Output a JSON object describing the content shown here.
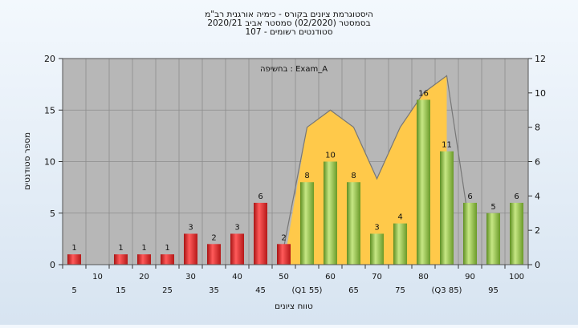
{
  "chart_data": {
    "type": "bar",
    "title_lines": [
      "היסטוגרמת ציונים בקורס - כימיה אורגנית רב\"מ",
      "בסמסטר  (02/2020)  סמסטר אביב 2020/21",
      "סטודנטים רשומים - 107"
    ],
    "annotation": "בחשיפה : Exam_A",
    "xlabel": "טווח ציונים",
    "ylabel": "מספר סטודנטים",
    "ylim": [
      0,
      20
    ],
    "y_ticks": [
      0,
      5,
      10,
      15,
      20
    ],
    "y2lim": [
      0,
      12
    ],
    "y2_ticks": [
      0,
      2,
      4,
      6,
      8,
      10,
      12
    ],
    "grid": true,
    "categories": [
      "5",
      "10",
      "15",
      "20",
      "25",
      "30",
      "35",
      "40",
      "45",
      "50",
      "(Q1 55)",
      "60",
      "65",
      "70",
      "75",
      "80",
      "(Q3 85)",
      "90",
      "95",
      "100"
    ],
    "values": [
      1,
      0,
      1,
      1,
      1,
      3,
      2,
      3,
      6,
      2,
      8,
      10,
      8,
      3,
      4,
      16,
      11,
      6,
      5,
      6
    ],
    "value_labels": [
      "1",
      "",
      "1",
      "1",
      "1",
      "3",
      "2",
      "3",
      "6",
      "2",
      "8",
      "10",
      "8",
      "3",
      "4",
      "16",
      "11",
      "6",
      "5",
      "6"
    ],
    "bar_colors": [
      "#e32626",
      "#e32626",
      "#e32626",
      "#e32626",
      "#e32626",
      "#e32626",
      "#e32626",
      "#e32626",
      "#e32626",
      "#e32626",
      "#8fc43e",
      "#8fc43e",
      "#8fc43e",
      "#8fc43e",
      "#8fc43e",
      "#8fc43e",
      "#8fc43e",
      "#8fc43e",
      "#8fc43e",
      "#8fc43e"
    ],
    "area_series": {
      "color": "#ffc94a",
      "axis": "right",
      "x_range": [
        "50",
        "(Q3 85)"
      ],
      "values": [
        0,
        8,
        9,
        8,
        5,
        8,
        10,
        11
      ]
    },
    "distribution_line": {
      "color": "#777777",
      "axis": "right",
      "x_range": [
        "50",
        "90"
      ],
      "values": [
        1,
        8,
        9,
        8,
        5,
        8,
        10,
        11,
        2
      ]
    }
  }
}
